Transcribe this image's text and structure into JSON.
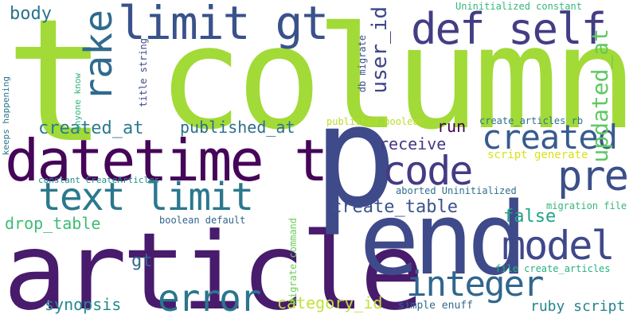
{
  "words": [
    {
      "text": "column",
      "color": "#a2da37"
    },
    {
      "text": "t",
      "color": "#a2da37"
    },
    {
      "text": "article",
      "color": "#481b6d"
    },
    {
      "text": "end",
      "color": "#3f4a8a"
    },
    {
      "text": "p",
      "color": "#3f4a8a"
    },
    {
      "text": "datetime t",
      "color": "#450559"
    },
    {
      "text": "limit gt",
      "color": "#3a528b"
    },
    {
      "text": "def self",
      "color": "#433d84"
    },
    {
      "text": "text limit",
      "color": "#2a788e"
    },
    {
      "text": "rake",
      "color": "#306a8e"
    },
    {
      "text": "code",
      "color": "#443b84"
    },
    {
      "text": "pre",
      "color": "#3c4f8a"
    },
    {
      "text": "created",
      "color": "#375b8d"
    },
    {
      "text": "model",
      "color": "#3f4889"
    },
    {
      "text": "integer",
      "color": "#31668e"
    },
    {
      "text": "error",
      "color": "#2b758e"
    },
    {
      "text": "created_at",
      "color": "#297b8e"
    },
    {
      "text": "published_at",
      "color": "#2e6f8e"
    },
    {
      "text": "user_id",
      "color": "#3f4788"
    },
    {
      "text": "updated_at",
      "color": "#5ec962"
    },
    {
      "text": "create_table",
      "color": "#3b528b"
    },
    {
      "text": "receive",
      "color": "#453781"
    },
    {
      "text": "run",
      "color": "#440154"
    },
    {
      "text": "false",
      "color": "#20a486"
    },
    {
      "text": "body",
      "color": "#2c728e"
    },
    {
      "text": "synopsis",
      "color": "#23898e"
    },
    {
      "text": "category_id",
      "color": "#c0e23c"
    },
    {
      "text": "drop_table",
      "color": "#3dbc74"
    },
    {
      "text": "gt",
      "color": "#31688e"
    },
    {
      "text": "ruby script",
      "color": "#25858e"
    },
    {
      "text": "simple enuff",
      "color": "#31688e"
    },
    {
      "text": "script generate",
      "color": "#d8e219"
    },
    {
      "text": "published boolean",
      "color": "#b8de29"
    },
    {
      "text": "create_articles rb",
      "color": "#2c728e"
    },
    {
      "text": "Uninitialized constant",
      "color": "#35b779"
    },
    {
      "text": "aborted Uninitialized",
      "color": "#2e6f8e"
    },
    {
      "text": "migration file",
      "color": "#35b779"
    },
    {
      "text": "boolean default",
      "color": "#33638d"
    },
    {
      "text": "file create_articles",
      "color": "#29af7f"
    },
    {
      "text": "constant CreateArticles",
      "color": "#21918c"
    },
    {
      "text": "title string",
      "color": "#3e4989"
    },
    {
      "text": "db migrate",
      "color": "#3b528b"
    },
    {
      "text": "migrate command",
      "color": "#6ccd5a"
    },
    {
      "text": "anyone know",
      "color": "#2fb47c"
    },
    {
      "text": "keeps happening",
      "color": "#2a788e"
    }
  ]
}
